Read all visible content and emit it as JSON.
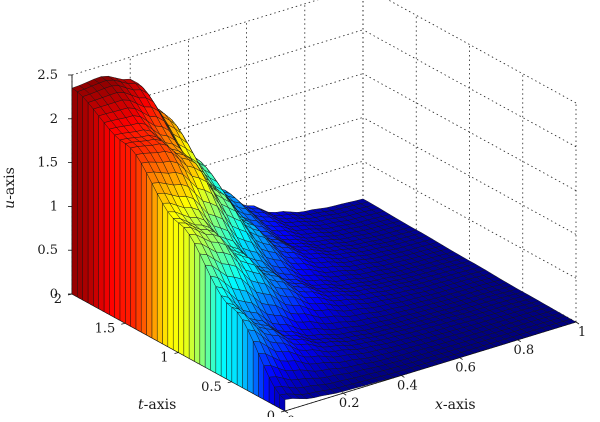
{
  "chart_data": {
    "type": "surface",
    "colormap": "jet",
    "grid": true,
    "xlabel_var": "x",
    "xlabel_suffix": "-axis",
    "ylabel_var": "t",
    "ylabel_suffix": "-axis",
    "zlabel_var": "u",
    "zlabel_suffix": "-axis",
    "xlim": [
      0,
      1
    ],
    "ylim": [
      0,
      2
    ],
    "zlim": [
      0,
      2.5
    ],
    "xticks": [
      "0",
      "0.2",
      "0.4",
      "0.6",
      "0.8",
      "1"
    ],
    "yticks": [
      "0",
      "0.5",
      "1",
      "1.5",
      "2"
    ],
    "zticks": [
      "0",
      "0.5",
      "1",
      "1.5",
      "2",
      "2.5"
    ],
    "x_samples": [
      0,
      0.1,
      0.2,
      0.3,
      0.4,
      0.5,
      0.6,
      0.7,
      0.8,
      0.9,
      1.0
    ],
    "t_samples": [
      0,
      0.5,
      1.0,
      1.5,
      2.0
    ],
    "u_values": [
      [
        0.13,
        0.05,
        0.02,
        0.01,
        0.0,
        0.0,
        0.0,
        0.0,
        0.0,
        0.0,
        0.0
      ],
      [
        0.85,
        0.55,
        0.32,
        0.18,
        0.1,
        0.06,
        0.04,
        0.03,
        0.02,
        0.02,
        0.01
      ],
      [
        1.48,
        1.3,
        0.95,
        0.62,
        0.38,
        0.22,
        0.13,
        0.08,
        0.05,
        0.04,
        0.03
      ],
      [
        2.05,
        2.0,
        1.72,
        1.25,
        0.78,
        0.45,
        0.26,
        0.15,
        0.09,
        0.06,
        0.05
      ],
      [
        2.35,
        2.38,
        2.25,
        1.8,
        1.2,
        0.7,
        0.4,
        0.22,
        0.13,
        0.09,
        0.07
      ]
    ]
  }
}
